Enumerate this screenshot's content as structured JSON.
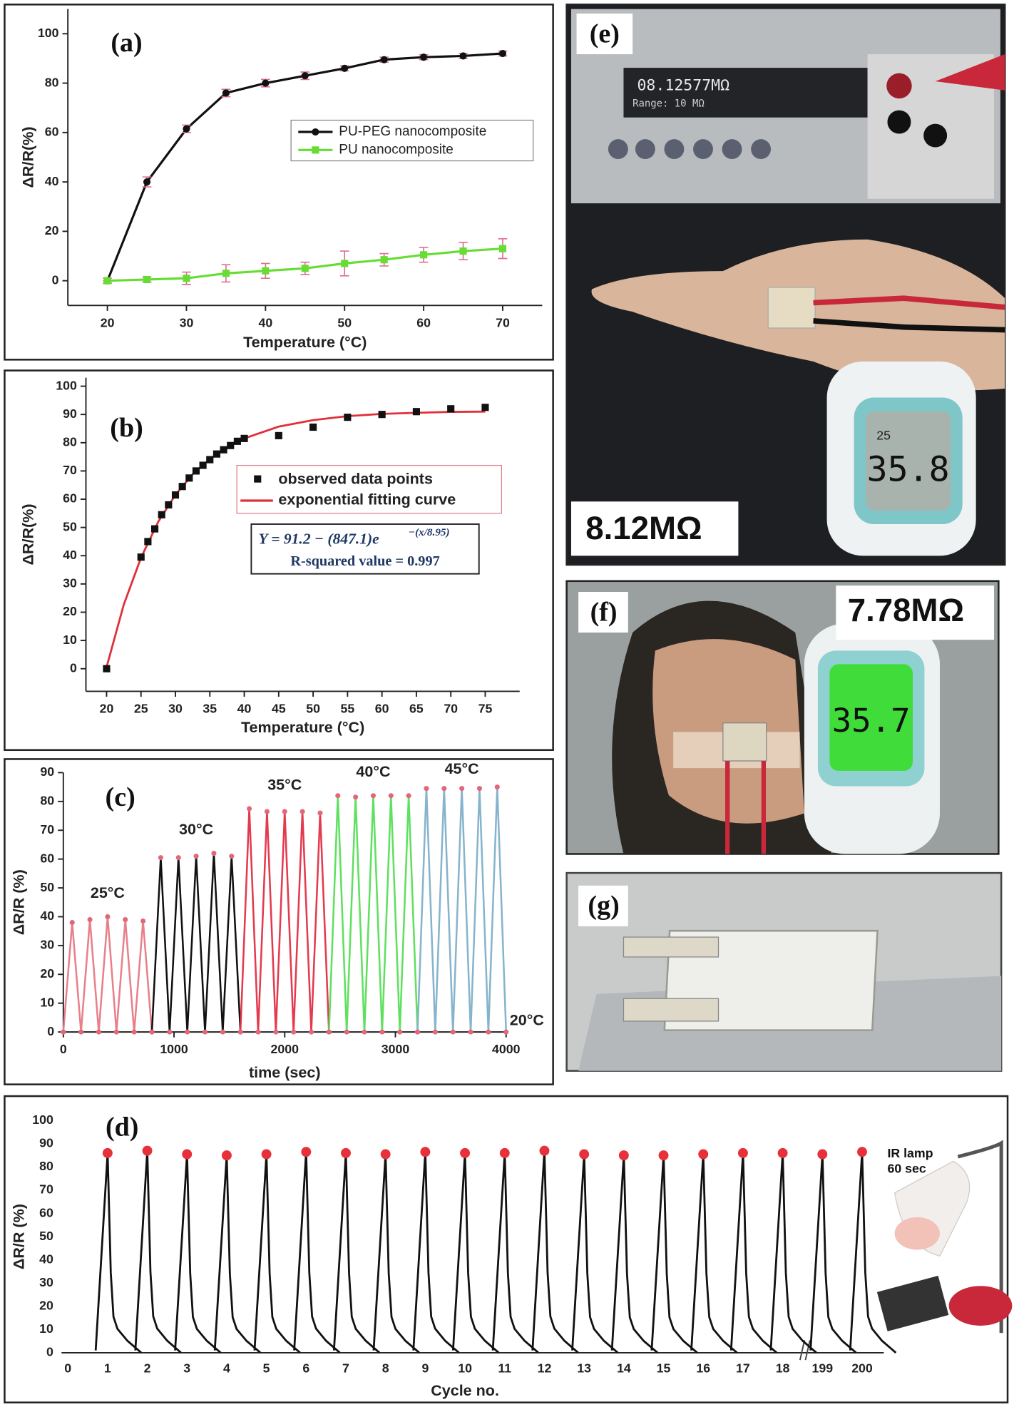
{
  "chart_data": [
    {
      "type": "line",
      "panel_label": "(a)",
      "xlabel": "Temperature (°C)",
      "ylabel": "ΔR/R(%)",
      "x": [
        20,
        25,
        30,
        35,
        40,
        45,
        50,
        55,
        60,
        65,
        70
      ],
      "series": [
        {
          "name": "PU-PEG nanocomposite",
          "color": "#111111",
          "values": [
            0,
            40,
            61.5,
            76,
            80,
            83,
            86,
            89.5,
            90.5,
            91,
            92
          ],
          "errors": [
            0,
            2,
            1.5,
            1.5,
            1.5,
            1.5,
            1,
            1,
            1,
            1,
            1
          ]
        },
        {
          "name": "PU nanocomposite",
          "color": "#66dd33",
          "values": [
            0,
            0.5,
            1,
            3,
            4,
            5,
            7,
            8.5,
            10.5,
            12,
            13
          ],
          "errors": [
            1,
            1,
            2.5,
            3.5,
            3,
            2.5,
            5,
            2.5,
            3,
            3.5,
            4
          ]
        }
      ],
      "error_color": "#e07090",
      "xlim": [
        15,
        75
      ],
      "ylim": [
        -10,
        110
      ],
      "xticks": [
        20,
        30,
        40,
        50,
        60,
        70
      ],
      "yticks": [
        0,
        20,
        40,
        60,
        80,
        100
      ]
    },
    {
      "type": "scatter",
      "panel_label": "(b)",
      "xlabel": "Temperature (°C)",
      "ylabel": "ΔR/R(%)",
      "series": [
        {
          "name": "observed data points",
          "color": "#111111",
          "x": [
            20,
            25,
            26,
            27,
            28,
            29,
            30,
            31,
            32,
            33,
            34,
            35,
            36,
            37,
            38,
            39,
            40,
            45,
            50,
            55,
            60,
            65,
            70,
            75
          ],
          "values": [
            0,
            39.5,
            45,
            49.5,
            54.5,
            58,
            61.5,
            64.5,
            67.5,
            70,
            72,
            74,
            76,
            77.5,
            79,
            80.5,
            81.5,
            82.5,
            85.5,
            89,
            90,
            91,
            92,
            92.5
          ]
        },
        {
          "name": "exponential fitting curve",
          "color": "#e0303a",
          "x": [
            20,
            22.5,
            25,
            27.5,
            30,
            32.5,
            35,
            37.5,
            40,
            45,
            50,
            55,
            60,
            65,
            70,
            75
          ],
          "values": [
            0.6,
            22.7,
            39.3,
            52.0,
            61.5,
            68.8,
            74.2,
            78.4,
            81.5,
            85.7,
            88.0,
            89.4,
            90.2,
            90.6,
            90.9,
            91.0
          ]
        }
      ],
      "equation": "Y = 91.2 − (847.1)e",
      "equation_exponent": "−(x/8.95)",
      "r_squared": "R-squared value = 0.997",
      "xlim": [
        17,
        80
      ],
      "ylim": [
        -8,
        103
      ],
      "xticks": [
        20,
        25,
        30,
        35,
        40,
        45,
        50,
        55,
        60,
        65,
        70,
        75
      ],
      "yticks": [
        0,
        10,
        20,
        30,
        40,
        50,
        60,
        70,
        80,
        90,
        100
      ]
    },
    {
      "type": "line",
      "panel_label": "(c)",
      "xlabel": "time (sec)",
      "ylabel": "ΔR/R (%)",
      "marker_color": "#e06878",
      "annotation": "20°C",
      "series": [
        {
          "name": "25°C",
          "color": "#e8808a",
          "x": [
            0,
            80,
            160,
            240,
            320,
            400,
            480,
            560,
            640,
            720,
            800
          ],
          "values": [
            0,
            38,
            0,
            39,
            0,
            40,
            0,
            39,
            0,
            38.5,
            0
          ]
        },
        {
          "name": "30°C",
          "color": "#111111",
          "x": [
            800,
            880,
            960,
            1040,
            1120,
            1200,
            1280,
            1360,
            1440,
            1520,
            1600
          ],
          "values": [
            0,
            60.5,
            0,
            60.5,
            0,
            61,
            0,
            62,
            0,
            61,
            0
          ]
        },
        {
          "name": "35°C",
          "color": "#e33a4e",
          "x": [
            1600,
            1680,
            1760,
            1840,
            1920,
            2000,
            2080,
            2160,
            2240,
            2320,
            2400
          ],
          "values": [
            0,
            77.5,
            0,
            76.5,
            0,
            76.5,
            0,
            76.5,
            0,
            76,
            0
          ]
        },
        {
          "name": "40°C",
          "color": "#5fe05f",
          "x": [
            2400,
            2480,
            2560,
            2640,
            2720,
            2800,
            2880,
            2960,
            3040,
            3120,
            3200
          ],
          "values": [
            0,
            82,
            0,
            81.5,
            0,
            82,
            0,
            82,
            0,
            82,
            0
          ]
        },
        {
          "name": "45°C",
          "color": "#86b4cc",
          "x": [
            3200,
            3280,
            3360,
            3440,
            3520,
            3600,
            3680,
            3760,
            3840,
            3920,
            4000
          ],
          "values": [
            0,
            84.5,
            0,
            84.5,
            0,
            84.5,
            0,
            84.5,
            0,
            85,
            0
          ]
        }
      ],
      "xlim": [
        0,
        4000
      ],
      "ylim": [
        0,
        90
      ],
      "xticks": [
        0,
        1000,
        2000,
        3000,
        4000
      ],
      "yticks": [
        0,
        10,
        20,
        30,
        40,
        50,
        60,
        70,
        80,
        90
      ]
    },
    {
      "type": "spike",
      "panel_label": "(d)",
      "xlabel": "Cycle no.",
      "ylabel": "ΔR/R (%)",
      "categories": [
        "0",
        "1",
        "2",
        "3",
        "4",
        "5",
        "6",
        "7",
        "8",
        "9",
        "10",
        "11",
        "12",
        "13",
        "14",
        "15",
        "16",
        "17",
        "18",
        "199",
        "200"
      ],
      "values": [
        null,
        86,
        87,
        85.5,
        85,
        85.5,
        86.5,
        86,
        85.5,
        86.5,
        86,
        86,
        87,
        85.5,
        85,
        85,
        85.5,
        86,
        86,
        85.5,
        86.5
      ],
      "color": "#111111",
      "marker_color": "#e8303a",
      "inset_label": [
        "IR lamp",
        "60 sec"
      ],
      "ylim": [
        0,
        100
      ],
      "yticks": [
        0,
        10,
        20,
        30,
        40,
        50,
        60,
        70,
        80,
        90,
        100
      ]
    }
  ],
  "photos": [
    {
      "label": "(e)",
      "caption": "8.12MΩ",
      "meter_reading": "08.12577MΩ",
      "meter_range": "Range: 10 MΩ",
      "thermo_small": "25",
      "thermo_reading": "35.8"
    },
    {
      "label": "(f)",
      "caption": "7.78MΩ",
      "thermo_reading": "35.7"
    },
    {
      "label": "(g)"
    }
  ]
}
